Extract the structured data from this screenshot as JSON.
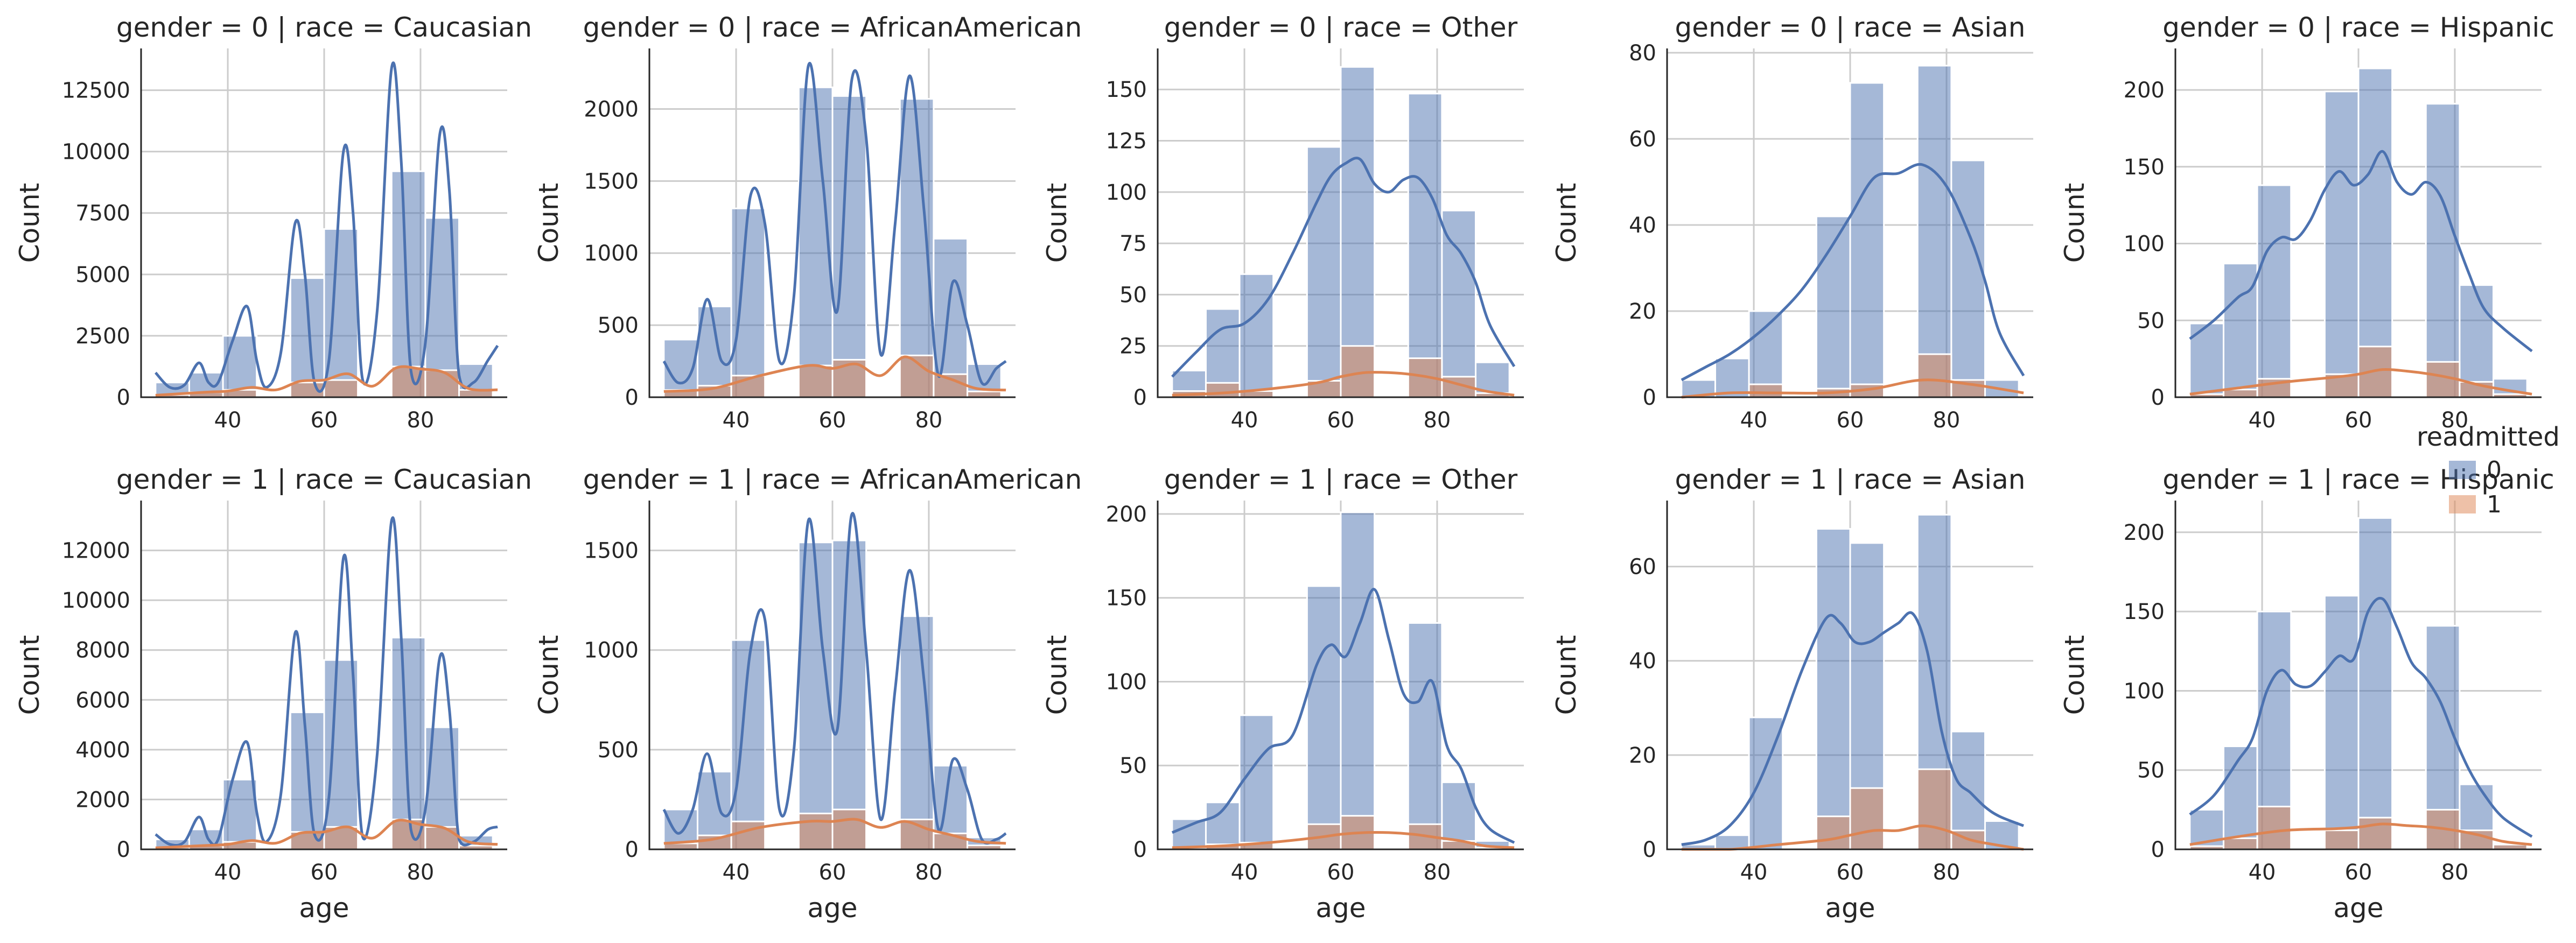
{
  "chart_data": {
    "type": "bar",
    "subtype": "faceted-histogram-with-kde",
    "xlabel": "age",
    "ylabel": "Count",
    "x_ticks": [
      40,
      60,
      80
    ],
    "xlim": [
      22,
      98
    ],
    "bins": [
      [
        25,
        35
      ],
      [
        35,
        45
      ],
      [
        45,
        55
      ],
      [
        55,
        65
      ],
      [
        65,
        75
      ],
      [
        75,
        85
      ],
      [
        85,
        95
      ]
    ],
    "legend": {
      "title": "readmitted",
      "placement": "right",
      "entries": [
        {
          "label": "0",
          "color": "#4c72b0"
        },
        {
          "label": "1",
          "color": "#dd8452"
        }
      ]
    },
    "panels": [
      {
        "title": "gender = 0 | race = Caucasian",
        "ylim": [
          0,
          14200
        ],
        "yticks": [
          0,
          2500,
          5000,
          7500,
          10000,
          12500
        ],
        "bins_x": [
          25,
          30,
          35,
          40,
          45,
          50,
          55,
          60,
          65,
          70,
          75,
          80,
          85,
          90,
          95
        ],
        "series0": [
          600,
          1000,
          2500,
          0,
          4850,
          6850,
          0,
          9200,
          7300,
          1350
        ],
        "series1": [
          100,
          200,
          300,
          0,
          600,
          700,
          0,
          1250,
          1100,
          300
        ],
        "kde0_x": [
          25,
          28,
          31,
          34,
          36,
          38,
          41,
          44,
          46,
          48,
          51,
          54,
          56,
          58,
          61,
          64,
          66,
          68,
          71,
          74,
          76,
          78,
          81,
          84,
          86,
          88,
          91,
          94,
          96
        ],
        "kde0_y": [
          1000,
          400,
          500,
          1400,
          600,
          600,
          2300,
          3700,
          1500,
          400,
          1800,
          7100,
          5000,
          600,
          1500,
          10000,
          7500,
          700,
          3500,
          13400,
          9600,
          1100,
          2200,
          10700,
          8400,
          900,
          600,
          1500,
          2100
        ],
        "kde1_x": [
          25,
          35,
          40,
          45,
          50,
          55,
          60,
          65,
          70,
          75,
          80,
          85,
          90,
          96
        ],
        "kde1_y": [
          80,
          200,
          250,
          400,
          300,
          650,
          700,
          950,
          450,
          1200,
          1150,
          1000,
          350,
          300
        ]
      },
      {
        "title": "gender = 0 | race = AfricanAmerican",
        "ylim": [
          0,
          2420
        ],
        "yticks": [
          0,
          500,
          1000,
          1500,
          2000
        ],
        "series0": [
          400,
          630,
          1310,
          0,
          2150,
          2090,
          0,
          2070,
          1100,
          230
        ],
        "series1": [
          50,
          80,
          150,
          0,
          220,
          260,
          0,
          290,
          160,
          40
        ],
        "kde0_x": [
          25,
          28,
          31,
          34,
          37,
          40,
          43,
          46,
          49,
          52,
          55,
          58,
          61,
          64,
          67,
          70,
          73,
          76,
          79,
          82,
          85,
          88,
          91,
          94,
          96
        ],
        "kde0_y": [
          250,
          100,
          200,
          680,
          250,
          400,
          1400,
          1200,
          250,
          700,
          2300,
          1500,
          600,
          2200,
          1800,
          300,
          1200,
          2230,
          1300,
          150,
          800,
          500,
          100,
          200,
          250
        ],
        "kde1_x": [
          25,
          35,
          45,
          55,
          60,
          65,
          70,
          75,
          80,
          85,
          90,
          96
        ],
        "kde1_y": [
          40,
          60,
          150,
          220,
          200,
          230,
          150,
          280,
          180,
          120,
          60,
          50
        ]
      },
      {
        "title": "gender = 0 | race = Other",
        "ylim": [
          0,
          170
        ],
        "yticks": [
          0,
          25,
          50,
          75,
          100,
          125,
          150
        ],
        "series0": [
          13,
          43,
          60,
          0,
          122,
          161,
          0,
          148,
          91,
          17
        ],
        "series1": [
          3,
          7,
          3,
          0,
          8,
          25,
          0,
          19,
          10,
          2
        ],
        "kde0_x": [
          25,
          30,
          35,
          40,
          45,
          50,
          55,
          58,
          61,
          64,
          67,
          70,
          73,
          76,
          79,
          82,
          85,
          88,
          91,
          96
        ],
        "kde0_y": [
          10,
          22,
          33,
          36,
          48,
          70,
          95,
          108,
          114,
          116,
          104,
          100,
          106,
          107,
          97,
          79,
          70,
          56,
          35,
          15
        ],
        "kde1_x": [
          25,
          35,
          45,
          55,
          60,
          65,
          70,
          75,
          80,
          85,
          90,
          96
        ],
        "kde1_y": [
          1,
          2,
          4,
          7,
          10,
          12,
          12,
          11,
          9,
          6,
          3,
          1
        ]
      },
      {
        "title": "gender = 0 | race = Asian",
        "ylim": [
          0,
          81
        ],
        "yticks": [
          0,
          20,
          40,
          60,
          80
        ],
        "series0": [
          4,
          9,
          20,
          0,
          42,
          73,
          0,
          77,
          55,
          4
        ],
        "series1": [
          0,
          0,
          3,
          0,
          2,
          3,
          0,
          10,
          4,
          0
        ],
        "kde0_x": [
          25,
          30,
          35,
          40,
          45,
          50,
          55,
          60,
          65,
          70,
          75,
          80,
          85,
          88,
          91,
          96
        ],
        "kde0_y": [
          4,
          7,
          10,
          14,
          19,
          25,
          33,
          42,
          51,
          52,
          54,
          49,
          37,
          27,
          15,
          5
        ],
        "kde1_x": [
          25,
          35,
          45,
          55,
          65,
          75,
          85,
          96
        ],
        "kde1_y": [
          0,
          1,
          1,
          1,
          2,
          4,
          3,
          1
        ]
      },
      {
        "title": "gender = 0 | race = Hispanic",
        "ylim": [
          0,
          227
        ],
        "yticks": [
          0,
          50,
          100,
          150,
          200
        ],
        "series0": [
          48,
          87,
          138,
          0,
          199,
          214,
          0,
          191,
          73,
          12
        ],
        "series1": [
          2,
          5,
          12,
          0,
          15,
          33,
          0,
          23,
          10,
          2
        ],
        "kde0_x": [
          25,
          30,
          35,
          38,
          41,
          44,
          47,
          50,
          53,
          56,
          59,
          62,
          65,
          68,
          71,
          74,
          77,
          80,
          83,
          86,
          90,
          96
        ],
        "kde0_y": [
          38,
          50,
          65,
          72,
          95,
          104,
          103,
          115,
          135,
          147,
          138,
          145,
          160,
          140,
          132,
          140,
          131,
          105,
          80,
          58,
          45,
          30
        ],
        "kde1_x": [
          25,
          35,
          45,
          55,
          60,
          65,
          70,
          75,
          80,
          85,
          90,
          96
        ],
        "kde1_y": [
          2,
          6,
          10,
          13,
          15,
          18,
          17,
          15,
          12,
          8,
          5,
          2
        ]
      },
      {
        "title": "gender = 1 | race = Caucasian",
        "ylim": [
          0,
          14000
        ],
        "yticks": [
          0,
          2000,
          4000,
          6000,
          8000,
          10000,
          12000
        ],
        "series0": [
          400,
          800,
          2800,
          0,
          5500,
          7600,
          0,
          8500,
          4900,
          550
        ],
        "series1": [
          80,
          150,
          300,
          0,
          700,
          900,
          0,
          1200,
          900,
          150
        ],
        "kde0_x": [
          25,
          28,
          31,
          34,
          36,
          38,
          41,
          44,
          46,
          48,
          51,
          54,
          56,
          58,
          61,
          64,
          66,
          68,
          71,
          74,
          76,
          78,
          81,
          84,
          86,
          88,
          91,
          94,
          96
        ],
        "kde0_y": [
          600,
          200,
          300,
          1300,
          400,
          400,
          2800,
          4300,
          1500,
          300,
          2200,
          8700,
          5000,
          600,
          2100,
          11700,
          7000,
          500,
          3800,
          13200,
          8500,
          800,
          1600,
          7700,
          5600,
          400,
          300,
          800,
          900
        ],
        "kde1_x": [
          25,
          35,
          40,
          45,
          50,
          55,
          60,
          65,
          70,
          75,
          80,
          85,
          90,
          96
        ],
        "kde1_y": [
          60,
          150,
          200,
          350,
          250,
          650,
          700,
          900,
          450,
          1150,
          1000,
          850,
          300,
          200
        ]
      },
      {
        "title": "gender = 1 | race = AfricanAmerican",
        "ylim": [
          0,
          1750
        ],
        "yticks": [
          0,
          500,
          1000,
          1500
        ],
        "series0": [
          200,
          390,
          1050,
          0,
          1540,
          1550,
          0,
          1170,
          420,
          60
        ],
        "series1": [
          30,
          70,
          140,
          0,
          180,
          200,
          0,
          150,
          80,
          20
        ],
        "kde0_x": [
          25,
          28,
          31,
          34,
          37,
          40,
          43,
          46,
          49,
          52,
          55,
          58,
          61,
          64,
          67,
          70,
          73,
          76,
          79,
          82,
          85,
          88,
          91,
          94,
          96
        ],
        "kde0_y": [
          200,
          80,
          200,
          480,
          180,
          300,
          1000,
          1150,
          200,
          500,
          1650,
          1000,
          600,
          1680,
          1000,
          150,
          800,
          1400,
          850,
          100,
          450,
          300,
          50,
          50,
          80
        ],
        "kde1_x": [
          25,
          35,
          45,
          55,
          60,
          65,
          70,
          75,
          80,
          85,
          90,
          96
        ],
        "kde1_y": [
          30,
          50,
          110,
          140,
          140,
          150,
          110,
          140,
          100,
          70,
          40,
          30
        ]
      },
      {
        "title": "gender = 1 | race = Other",
        "ylim": [
          0,
          208
        ],
        "yticks": [
          0,
          50,
          100,
          150,
          200
        ],
        "series0": [
          18,
          28,
          80,
          0,
          157,
          201,
          0,
          135,
          40,
          5
        ],
        "series1": [
          1,
          3,
          4,
          0,
          15,
          20,
          0,
          15,
          5,
          1
        ],
        "kde0_x": [
          25,
          30,
          35,
          40,
          45,
          50,
          55,
          58,
          61,
          64,
          67,
          70,
          73,
          76,
          79,
          82,
          85,
          88,
          91,
          96
        ],
        "kde0_y": [
          10,
          16,
          22,
          42,
          60,
          68,
          110,
          122,
          115,
          135,
          155,
          125,
          93,
          88,
          100,
          62,
          48,
          25,
          12,
          4
        ],
        "kde1_x": [
          25,
          35,
          45,
          55,
          60,
          65,
          70,
          75,
          80,
          85,
          90,
          96
        ],
        "kde1_y": [
          1,
          2,
          4,
          7,
          9,
          10,
          10,
          9,
          7,
          5,
          2,
          1
        ]
      },
      {
        "title": "gender = 1 | race = Asian",
        "ylim": [
          0,
          74
        ],
        "yticks": [
          0,
          20,
          40,
          60
        ],
        "series0": [
          1,
          3,
          28,
          0,
          68,
          65,
          0,
          71,
          25,
          6
        ],
        "series1": [
          0,
          0,
          0,
          0,
          7,
          13,
          0,
          17,
          4,
          0
        ],
        "kde0_x": [
          25,
          30,
          35,
          40,
          45,
          50,
          55,
          58,
          61,
          64,
          67,
          70,
          73,
          76,
          79,
          82,
          85,
          88,
          91,
          96
        ],
        "kde0_y": [
          1,
          2,
          5,
          12,
          24,
          38,
          49,
          48,
          44,
          44,
          46,
          48,
          50,
          42,
          25,
          15,
          12,
          9,
          7,
          5
        ],
        "kde1_x": [
          25,
          35,
          45,
          55,
          60,
          65,
          70,
          75,
          80,
          85,
          90,
          96
        ],
        "kde1_y": [
          0,
          0,
          1,
          2,
          3,
          4,
          4,
          5,
          4,
          2,
          1,
          0
        ]
      },
      {
        "title": "gender = 1 | race = Hispanic",
        "ylim": [
          0,
          220
        ],
        "yticks": [
          0,
          50,
          100,
          150,
          200
        ],
        "series0": [
          25,
          65,
          150,
          0,
          160,
          209,
          0,
          141,
          41,
          4
        ],
        "series1": [
          2,
          7,
          27,
          0,
          12,
          20,
          0,
          25,
          12,
          3
        ],
        "kde0_x": [
          25,
          30,
          35,
          38,
          41,
          44,
          47,
          50,
          53,
          56,
          59,
          62,
          65,
          68,
          71,
          74,
          77,
          80,
          83,
          86,
          90,
          96
        ],
        "kde0_y": [
          22,
          34,
          56,
          70,
          100,
          113,
          104,
          103,
          112,
          122,
          120,
          150,
          158,
          140,
          118,
          108,
          93,
          70,
          50,
          35,
          20,
          8
        ],
        "kde1_x": [
          25,
          35,
          45,
          55,
          60,
          65,
          70,
          75,
          80,
          85,
          90,
          96
        ],
        "kde1_y": [
          3,
          8,
          12,
          13,
          14,
          16,
          15,
          14,
          12,
          9,
          5,
          3
        ]
      }
    ]
  }
}
